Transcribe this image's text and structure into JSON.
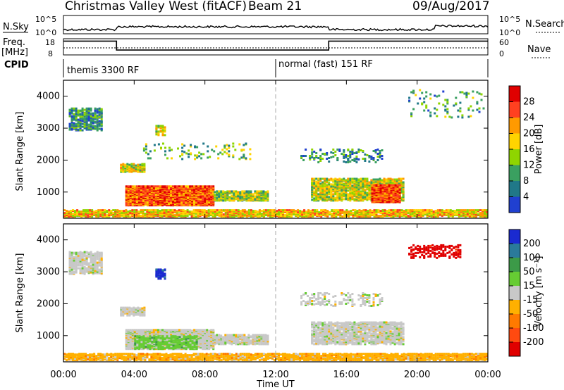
{
  "header": {
    "station": "Christmas Valley West (fitACF)",
    "beam": "Beam 21",
    "date": "09/Aug/2017"
  },
  "panels": {
    "nsky_label": "N.Sky",
    "nsearch_label": "N.Search",
    "freq_label_1": "Freq.",
    "freq_label_2": "[MHz]",
    "nave_label": "Nave",
    "cpid_label": "CPID",
    "nsky_ticks": [
      "10^5",
      "10^0"
    ],
    "nsearch_ticks": [
      "10^5",
      "10^0"
    ],
    "freq_ticks": [
      "18",
      "8"
    ],
    "nave_ticks": [
      "60",
      "0"
    ],
    "cpid_segments": [
      {
        "label": "themis 3300 RF",
        "start_hour": 0,
        "end_hour": 12
      },
      {
        "label": "normal (fast) 151 RF",
        "start_hour": 12,
        "end_hour": 24
      }
    ],
    "freq_steps": [
      {
        "start_hour": 0,
        "end_hour": 3,
        "mhz": 16.5
      },
      {
        "start_hour": 3,
        "end_hour": 15,
        "mhz": 11
      },
      {
        "start_hour": 15,
        "end_hour": 24,
        "mhz": 16.5
      }
    ]
  },
  "chart_data": [
    {
      "type": "heatmap",
      "ylabel": "Slant Range [km]",
      "xlabel": "Time UT",
      "x_ticks": [
        "00:00",
        "04:00",
        "08:00",
        "12:00",
        "16:00",
        "20:00",
        "00:00"
      ],
      "y_ticks": [
        1000,
        2000,
        3000,
        4000
      ],
      "xlim_hours": [
        0,
        24
      ],
      "ylim_km": [
        180,
        4500
      ],
      "colorbar_label": "Power [dB]",
      "colorbar_ticks": [
        "28",
        "24",
        "20",
        "16",
        "12",
        "8",
        "4"
      ],
      "colors": [
        "#e00000",
        "#ff4020",
        "#ff9a00",
        "#ffd400",
        "#8fd500",
        "#3aa060",
        "#207888",
        "#2040d0"
      ],
      "regions": [
        {
          "t0": 0.3,
          "t1": 2.2,
          "r0": 2900,
          "r1": 3600,
          "dens": 0.55,
          "val": 0.25
        },
        {
          "t0": 3.2,
          "t1": 4.6,
          "r0": 1600,
          "r1": 1850,
          "dens": 0.75,
          "val": 0.55
        },
        {
          "t0": 5.2,
          "t1": 5.7,
          "r0": 2750,
          "r1": 3050,
          "dens": 0.55,
          "val": 0.5
        },
        {
          "t0": 3.5,
          "t1": 8.5,
          "r0": 550,
          "r1": 1150,
          "dens": 0.92,
          "val": 0.78
        },
        {
          "t0": 8.5,
          "t1": 11.6,
          "r0": 700,
          "r1": 1000,
          "dens": 0.75,
          "val": 0.45
        },
        {
          "t0": 14.0,
          "t1": 19.2,
          "r0": 700,
          "r1": 1400,
          "dens": 0.65,
          "val": 0.5
        },
        {
          "t0": 17.4,
          "t1": 19.0,
          "r0": 650,
          "r1": 1200,
          "dens": 0.85,
          "val": 0.82
        },
        {
          "t0": 13.4,
          "t1": 18.0,
          "r0": 1900,
          "r1": 2300,
          "dens": 0.2,
          "val": 0.25
        },
        {
          "t0": 0.0,
          "t1": 24.0,
          "r0": 200,
          "r1": 420,
          "dens": 0.7,
          "val": 0.6
        },
        {
          "t0": 4.5,
          "t1": 10.5,
          "r0": 2000,
          "r1": 2500,
          "dens": 0.08,
          "val": 0.4
        },
        {
          "t0": 19.5,
          "t1": 24.0,
          "r0": 3300,
          "r1": 4200,
          "dens": 0.05,
          "val": 0.3
        }
      ]
    },
    {
      "type": "heatmap",
      "ylabel": "Slant Range [km]",
      "xlabel": "Time UT",
      "x_ticks": [
        "00:00",
        "04:00",
        "08:00",
        "12:00",
        "16:00",
        "20:00",
        "00:00"
      ],
      "y_ticks": [
        1000,
        2000,
        3000,
        4000
      ],
      "xlim_hours": [
        0,
        24
      ],
      "ylim_km": [
        180,
        4500
      ],
      "colorbar_label": "Velocity [m s⁻¹]",
      "colorbar_ticks": [
        "200",
        "100",
        "50",
        "15",
        "-15",
        "-50",
        "-100",
        "-200"
      ],
      "colors": [
        "#1a2ad0",
        "#2a7a9a",
        "#3c9a48",
        "#66cc33",
        "#c8c8c8",
        "#ffb000",
        "#ff7a00",
        "#ff4a10",
        "#e00000"
      ],
      "regions": [
        {
          "t0": 0.3,
          "t1": 2.2,
          "r0": 2900,
          "r1": 3600,
          "dens": 0.55,
          "val": 4
        },
        {
          "t0": 3.2,
          "t1": 4.6,
          "r0": 1600,
          "r1": 1850,
          "dens": 0.75,
          "val": 4
        },
        {
          "t0": 5.2,
          "t1": 5.7,
          "r0": 2750,
          "r1": 3050,
          "dens": 0.6,
          "val": 0
        },
        {
          "t0": 3.5,
          "t1": 8.5,
          "r0": 550,
          "r1": 1150,
          "dens": 0.92,
          "val": 4
        },
        {
          "t0": 4.0,
          "t1": 7.5,
          "r0": 550,
          "r1": 950,
          "dens": 0.6,
          "val": 3
        },
        {
          "t0": 8.5,
          "t1": 11.6,
          "r0": 700,
          "r1": 1000,
          "dens": 0.75,
          "val": 4
        },
        {
          "t0": 14.0,
          "t1": 19.2,
          "r0": 700,
          "r1": 1400,
          "dens": 0.65,
          "val": 4
        },
        {
          "t0": 13.4,
          "t1": 18.0,
          "r0": 1900,
          "r1": 2300,
          "dens": 0.2,
          "val": 4
        },
        {
          "t0": 0.0,
          "t1": 24.0,
          "r0": 200,
          "r1": 420,
          "dens": 0.7,
          "val": 5
        },
        {
          "t0": 19.5,
          "t1": 22.5,
          "r0": 3400,
          "r1": 3800,
          "dens": 0.25,
          "val": 8
        }
      ]
    }
  ]
}
